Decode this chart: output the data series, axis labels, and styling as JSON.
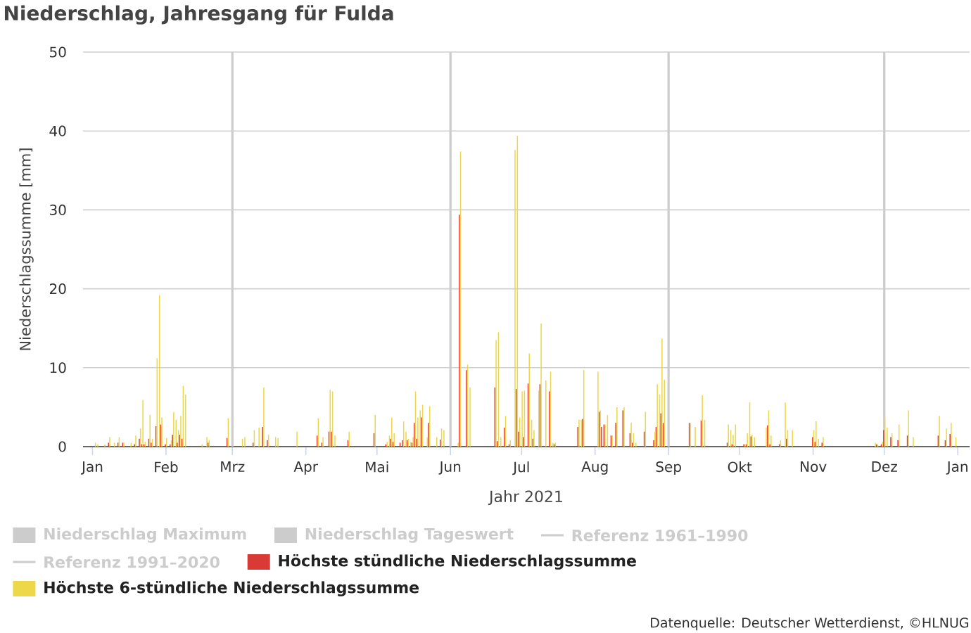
{
  "chart_data": {
    "type": "bar",
    "title": "Niederschlag, Jahresgang für Fulda",
    "xlabel": "Jahr 2021",
    "ylabel": "Niederschlagssumme [mm]",
    "annotations": [
      "Datenquelle: Deutscher Wetterdienst, ©HLNUG"
    ],
    "x": [
      "2021-01-02",
      "2021-01-03",
      "2021-01-06",
      "2021-01-08",
      "2021-01-10",
      "2021-01-12",
      "2021-01-14",
      "2021-01-17",
      "2021-01-19",
      "2021-01-21",
      "2021-01-22",
      "2021-01-23",
      "2021-01-25",
      "2021-01-26",
      "2021-01-28",
      "2021-01-29",
      "2021-01-30",
      "2021-02-01",
      "2021-02-03",
      "2021-02-04",
      "2021-02-05",
      "2021-02-06",
      "2021-02-07",
      "2021-02-08",
      "2021-02-09",
      "2021-02-16",
      "2021-02-18",
      "2021-02-19",
      "2021-02-27",
      "2021-03-05",
      "2021-03-06",
      "2021-03-10",
      "2021-03-12",
      "2021-03-14",
      "2021-03-16",
      "2021-03-19",
      "2021-03-20",
      "2021-03-28",
      "2021-04-06",
      "2021-04-08",
      "2021-04-11",
      "2021-04-12",
      "2021-04-13",
      "2021-04-19",
      "2021-04-30",
      "2021-05-05",
      "2021-05-06",
      "2021-05-07",
      "2021-05-08",
      "2021-05-11",
      "2021-05-12",
      "2021-05-13",
      "2021-05-14",
      "2021-05-15",
      "2021-05-16",
      "2021-05-17",
      "2021-05-18",
      "2021-05-19",
      "2021-05-20",
      "2021-05-22",
      "2021-05-23",
      "2021-05-26",
      "2021-05-28",
      "2021-05-29",
      "2021-06-04",
      "2021-06-05",
      "2021-06-08",
      "2021-06-09",
      "2021-06-20",
      "2021-06-21",
      "2021-06-22",
      "2021-06-24",
      "2021-06-26",
      "2021-06-28",
      "2021-06-29",
      "2021-06-30",
      "2021-07-01",
      "2021-07-02",
      "2021-07-04",
      "2021-07-05",
      "2021-07-06",
      "2021-07-08",
      "2021-07-09",
      "2021-07-11",
      "2021-07-13",
      "2021-07-14",
      "2021-07-15",
      "2021-07-25",
      "2021-07-26",
      "2021-07-27",
      "2021-08-02",
      "2021-08-03",
      "2021-08-04",
      "2021-08-05",
      "2021-08-06",
      "2021-08-08",
      "2021-08-10",
      "2021-08-13",
      "2021-08-16",
      "2021-08-17",
      "2021-08-18",
      "2021-08-22",
      "2021-08-26",
      "2021-08-27",
      "2021-08-28",
      "2021-08-29",
      "2021-08-30",
      "2021-09-10",
      "2021-09-12",
      "2021-09-15",
      "2021-09-16",
      "2021-09-26",
      "2021-09-27",
      "2021-09-28",
      "2021-09-29",
      "2021-10-03",
      "2021-10-04",
      "2021-10-05",
      "2021-10-06",
      "2021-10-07",
      "2021-10-12",
      "2021-10-13",
      "2021-10-14",
      "2021-10-18",
      "2021-10-20",
      "2021-10-21",
      "2021-10-23",
      "2021-11-01",
      "2021-11-02",
      "2021-11-03",
      "2021-11-05",
      "2021-11-27",
      "2021-11-28",
      "2021-11-30",
      "2021-12-01",
      "2021-12-02",
      "2021-12-04",
      "2021-12-07",
      "2021-12-11",
      "2021-12-13",
      "2021-12-24",
      "2021-12-27",
      "2021-12-29",
      "2021-12-31"
    ],
    "series": [
      {
        "name": "Niederschlag Maximum",
        "color": "#cccccc",
        "values": [
          null,
          null,
          null,
          null,
          null,
          null,
          null,
          null,
          null,
          null,
          null,
          null,
          null,
          null,
          null,
          null,
          null,
          null,
          null,
          null,
          null,
          null,
          null,
          null,
          null,
          null,
          null,
          null,
          null,
          null,
          null,
          null,
          null,
          null,
          null,
          null,
          null,
          null,
          null,
          null,
          null,
          null,
          null,
          null,
          null,
          null,
          null,
          null,
          null,
          null,
          null,
          null,
          null,
          null,
          null,
          null,
          null,
          null,
          null,
          null,
          null,
          null,
          null,
          null,
          null,
          null,
          null,
          null,
          null,
          null,
          null,
          null,
          null,
          null,
          null,
          null,
          null,
          null,
          null,
          null,
          null,
          null,
          null,
          null,
          null,
          null,
          null,
          null,
          null,
          null,
          null,
          null,
          null,
          null,
          null,
          null,
          null,
          null,
          null,
          null,
          null,
          null,
          null,
          null,
          null,
          null,
          null,
          null,
          null,
          null,
          null,
          null,
          null,
          null,
          null,
          null,
          null,
          null,
          null,
          null,
          null,
          null,
          null,
          null,
          null,
          null,
          null,
          null,
          null,
          null,
          null,
          null,
          null,
          null,
          null,
          null,
          null,
          null,
          null,
          null,
          null,
          null,
          null,
          null
        ]
      },
      {
        "name": "Niederschlag Tageswert",
        "color": "#cccccc",
        "values": [
          null,
          null,
          null,
          null,
          null,
          null,
          null,
          null,
          null,
          null,
          null,
          null,
          null,
          null,
          null,
          null,
          null,
          null,
          null,
          null,
          null,
          null,
          null,
          null,
          null,
          null,
          null,
          null,
          null,
          null,
          null,
          null,
          null,
          null,
          null,
          null,
          null,
          null,
          null,
          null,
          null,
          null,
          null,
          null,
          null,
          null,
          null,
          null,
          null,
          null,
          null,
          null,
          null,
          null,
          null,
          null,
          null,
          null,
          null,
          null,
          null,
          null,
          null,
          null,
          null,
          null,
          null,
          null,
          null,
          null,
          null,
          null,
          null,
          null,
          null,
          null,
          null,
          null,
          null,
          null,
          null,
          null,
          null,
          null,
          null,
          null,
          null,
          null,
          null,
          null,
          null,
          null,
          null,
          null,
          null,
          null,
          null,
          null,
          null,
          null,
          null,
          null,
          null,
          null,
          null,
          null,
          null,
          null,
          null,
          null,
          null,
          null,
          null,
          null,
          null,
          null,
          null,
          null,
          null,
          null,
          null,
          null,
          null,
          null,
          null,
          null,
          null,
          null,
          null,
          null,
          null,
          null,
          null,
          null,
          null,
          null,
          null,
          null,
          null,
          null,
          null,
          null,
          null,
          null
        ]
      },
      {
        "name": "Referenz 1961–1990",
        "type": "line",
        "color": "#cccccc",
        "values": [
          null,
          null,
          null,
          null,
          null,
          null,
          null,
          null,
          null,
          null,
          null,
          null,
          null,
          null,
          null,
          null,
          null,
          null,
          null,
          null,
          null,
          null,
          null,
          null,
          null,
          null,
          null,
          null,
          null,
          null,
          null,
          null,
          null,
          null,
          null,
          null,
          null,
          null,
          null,
          null,
          null,
          null,
          null,
          null,
          null,
          null,
          null,
          null,
          null,
          null,
          null,
          null,
          null,
          null,
          null,
          null,
          null,
          null,
          null,
          null,
          null,
          null,
          null,
          null,
          null,
          null,
          null,
          null,
          null,
          null,
          null,
          null,
          null,
          null,
          null,
          null,
          null,
          null,
          null,
          null,
          null,
          null,
          null,
          null,
          null,
          null,
          null,
          null,
          null,
          null,
          null,
          null,
          null,
          null,
          null,
          null,
          null,
          null,
          null,
          null,
          null,
          null,
          null,
          null,
          null,
          null,
          null,
          null,
          null,
          null,
          null,
          null,
          null,
          null,
          null,
          null,
          null,
          null,
          null,
          null,
          null,
          null,
          null,
          null,
          null,
          null,
          null,
          null,
          null,
          null,
          null,
          null,
          null,
          null,
          null,
          null,
          null,
          null,
          null,
          null,
          null,
          null,
          null,
          null
        ]
      },
      {
        "name": "Referenz 1991–2020",
        "type": "line",
        "color": "#cccccc",
        "values": [
          null,
          null,
          null,
          null,
          null,
          null,
          null,
          null,
          null,
          null,
          null,
          null,
          null,
          null,
          null,
          null,
          null,
          null,
          null,
          null,
          null,
          null,
          null,
          null,
          null,
          null,
          null,
          null,
          null,
          null,
          null,
          null,
          null,
          null,
          null,
          null,
          null,
          null,
          null,
          null,
          null,
          null,
          null,
          null,
          null,
          null,
          null,
          null,
          null,
          null,
          null,
          null,
          null,
          null,
          null,
          null,
          null,
          null,
          null,
          null,
          null,
          null,
          null,
          null,
          null,
          null,
          null,
          null,
          null,
          null,
          null,
          null,
          null,
          null,
          null,
          null,
          null,
          null,
          null,
          null,
          null,
          null,
          null,
          null,
          null,
          null,
          null,
          null,
          null,
          null,
          null,
          null,
          null,
          null,
          null,
          null,
          null,
          null,
          null,
          null,
          null,
          null,
          null,
          null,
          null,
          null,
          null,
          null,
          null,
          null,
          null,
          null,
          null,
          null,
          null,
          null,
          null,
          null,
          null,
          null,
          null,
          null,
          null,
          null,
          null,
          null,
          null,
          null,
          null,
          null,
          null,
          null,
          null,
          null,
          null,
          null,
          null,
          null,
          null,
          null,
          null,
          null,
          null,
          null
        ]
      },
      {
        "name": "Höchste stündliche Niederschlagssumme",
        "color": "#d93a35",
        "values": [
          null,
          null,
          null,
          0.5,
          null,
          0.5,
          0.5,
          null,
          0.3,
          1.0,
          0.3,
          0.3,
          1.0,
          0.5,
          2.6,
          null,
          2.8,
          0.3,
          0.3,
          1.5,
          null,
          0.5,
          1.5,
          1.0,
          null,
          null,
          null,
          0.5,
          1.1,
          null,
          null,
          0.5,
          null,
          2.5,
          0.8,
          null,
          null,
          null,
          1.4,
          0.5,
          1.9,
          1.9,
          null,
          0.8,
          1.7,
          0.3,
          null,
          1.0,
          0.6,
          0.5,
          0.8,
          null,
          0.8,
          null,
          0.5,
          3.0,
          1.0,
          null,
          3.7,
          null,
          3.0,
          null,
          0.9,
          null,
          null,
          29.4,
          9.7,
          null,
          7.5,
          0.7,
          null,
          2.4,
          0.3,
          null,
          7.3,
          1.9,
          null,
          1.2,
          8.0,
          null,
          1.0,
          null,
          7.9,
          null,
          7.0,
          null,
          0.3,
          2.5,
          null,
          3.5,
          null,
          4.4,
          2.5,
          2.8,
          null,
          1.4,
          3.0,
          4.6,
          1.7,
          0.5,
          null,
          1.9,
          0.8,
          2.5,
          null,
          4.2,
          3.0,
          3.0,
          null,
          3.3,
          null,
          0.5,
          null,
          0.3,
          null,
          0.3,
          0.3,
          null,
          1.3,
          null,
          null,
          2.7,
          0.3,
          0.3,
          null,
          1.0,
          null,
          1.2,
          0.6,
          null,
          0.5,
          null,
          0.3,
          0.3,
          2.1,
          null,
          1.2,
          0.8,
          1.4,
          null,
          1.4,
          0.8,
          1.6,
          null
        ]
      },
      {
        "name": "Höchste 6-stündliche Niederschlagssumme",
        "color": "#ecd848",
        "values": [
          0.5,
          0.3,
          0.3,
          1.2,
          0.5,
          1.2,
          0.5,
          0.5,
          1.4,
          2.3,
          5.9,
          0.6,
          4.0,
          1.0,
          11.2,
          19.2,
          3.7,
          1.1,
          0.8,
          4.4,
          3.4,
          2.1,
          3.9,
          7.7,
          6.6,
          0.3,
          1.2,
          0.8,
          3.6,
          1.0,
          1.2,
          2.1,
          2.4,
          7.5,
          1.5,
          1.2,
          1.1,
          1.9,
          3.6,
          1.2,
          7.2,
          7.0,
          1.4,
          1.9,
          4.0,
          0.6,
          1.4,
          3.7,
          1.7,
          null,
          3.2,
          1.9,
          1.0,
          0.6,
          1.2,
          7.0,
          3.7,
          4.6,
          5.3,
          1.2,
          5.1,
          1.2,
          2.3,
          2.1,
          0.5,
          37.4,
          10.4,
          7.5,
          13.5,
          14.5,
          1.2,
          3.9,
          0.8,
          37.6,
          39.4,
          3.7,
          7.0,
          7.1,
          11.8,
          3.4,
          2.1,
          7.1,
          15.6,
          8.4,
          9.5,
          0.5,
          0.5,
          3.4,
          3.4,
          9.7,
          9.5,
          4.6,
          null,
          2.8,
          4.0,
          1.4,
          5.0,
          5.0,
          3.0,
          1.7,
          0.5,
          4.4,
          1.9,
          7.9,
          6.6,
          13.7,
          8.5,
          3.0,
          2.5,
          6.5,
          3.4,
          2.8,
          2.1,
          1.5,
          2.8,
          0.3,
          1.7,
          5.6,
          1.5,
          1.2,
          2.4,
          4.6,
          1.4,
          0.8,
          5.6,
          2.1,
          2.1,
          2.1,
          3.2,
          1.0,
          1.2,
          0.5,
          0.3,
          0.6,
          3.7,
          2.4,
          1.7,
          2.8,
          4.6,
          1.2,
          3.9,
          2.3,
          3.0,
          1.2
        ]
      }
    ],
    "xlim": [
      "2020-12-28",
      "2022-01-06"
    ],
    "ylim": [
      0,
      50
    ],
    "xticks": [
      {
        "value": "2021-01-01",
        "label": "Jan"
      },
      {
        "value": "2021-02-01",
        "label": "Feb"
      },
      {
        "value": "2021-03-01",
        "label": "Mrz"
      },
      {
        "value": "2021-04-01",
        "label": "Apr"
      },
      {
        "value": "2021-05-01",
        "label": "Mai"
      },
      {
        "value": "2021-06-01",
        "label": "Jun"
      },
      {
        "value": "2021-07-01",
        "label": "Jul"
      },
      {
        "value": "2021-08-01",
        "label": "Aug"
      },
      {
        "value": "2021-09-01",
        "label": "Sep"
      },
      {
        "value": "2021-10-01",
        "label": "Okt"
      },
      {
        "value": "2021-11-01",
        "label": "Nov"
      },
      {
        "value": "2021-12-01",
        "label": "Dez"
      },
      {
        "value": "2022-01-01",
        "label": "Jan"
      }
    ],
    "yticks": [
      0,
      10,
      20,
      30,
      40,
      50
    ],
    "grid": "y",
    "legend": "bottom",
    "ref_lines": [
      {
        "axis": "x",
        "value": "2021-03-01",
        "color": "#cccccc"
      },
      {
        "axis": "x",
        "value": "2021-06-01",
        "color": "#cccccc"
      },
      {
        "axis": "x",
        "value": "2021-09-01",
        "color": "#cccccc"
      },
      {
        "axis": "x",
        "value": "2021-12-01",
        "color": "#cccccc"
      }
    ]
  }
}
